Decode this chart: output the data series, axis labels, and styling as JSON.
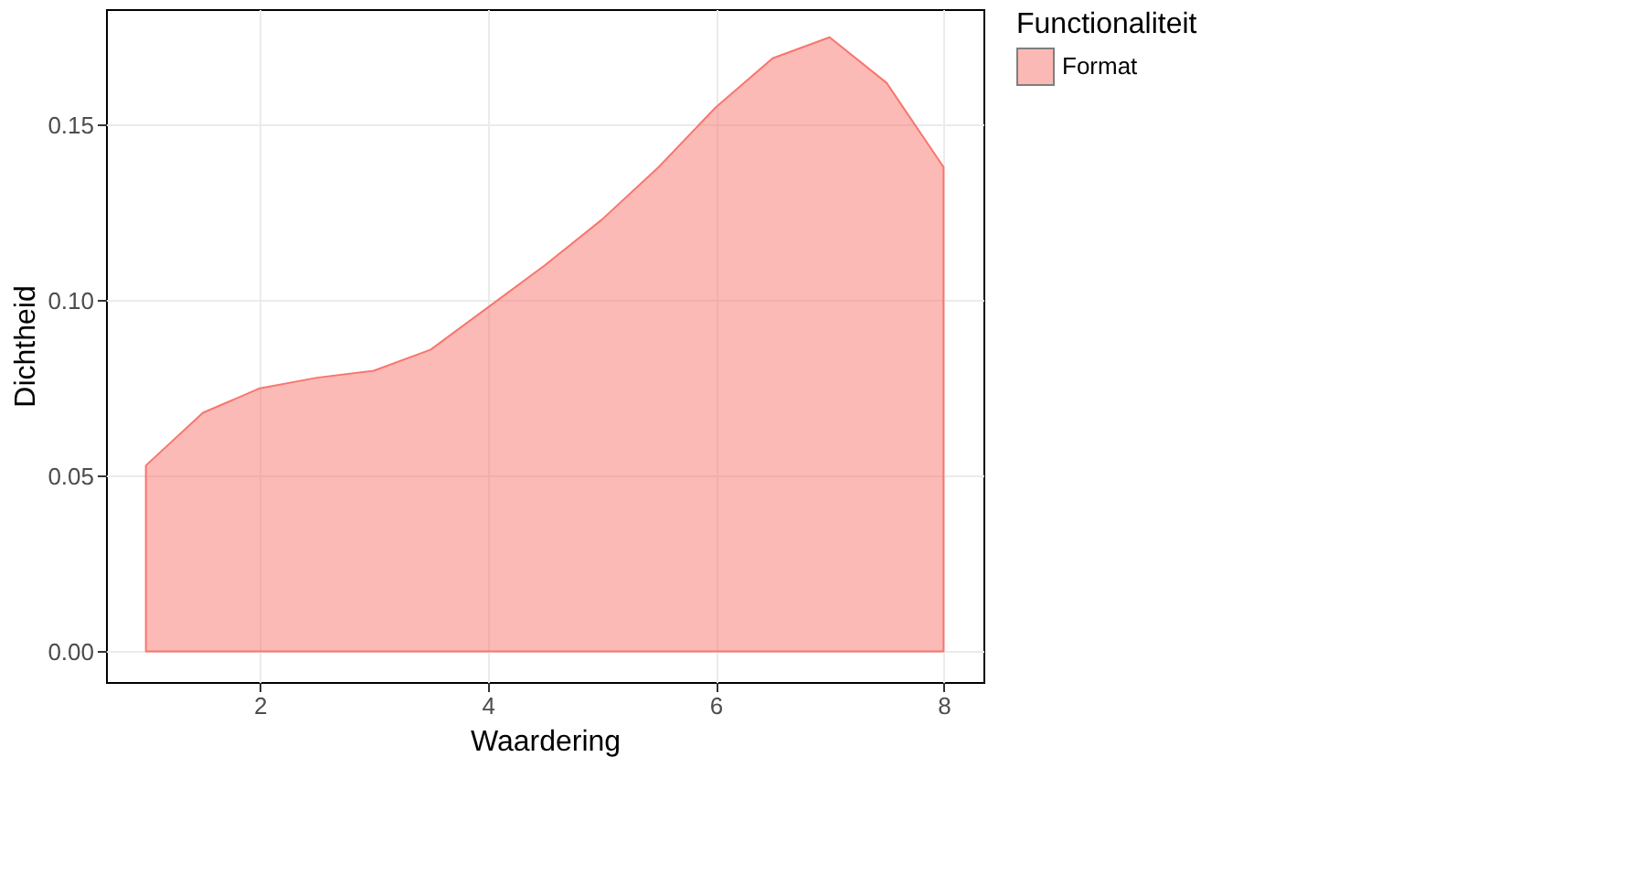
{
  "chart_data": {
    "type": "area",
    "xlabel": "Waardering",
    "ylabel": "Dichtheid",
    "legend_title": "Functionaliteit",
    "x": [
      1,
      1.5,
      2,
      2.5,
      3,
      3.5,
      4,
      4.5,
      5,
      5.5,
      6,
      6.5,
      7,
      7.5,
      8
    ],
    "series": [
      {
        "name": "Format",
        "color": "#f8766d",
        "values": [
          0.053,
          0.068,
          0.075,
          0.078,
          0.08,
          0.086,
          0.098,
          0.11,
          0.123,
          0.138,
          0.155,
          0.169,
          0.175,
          0.162,
          0.138
        ]
      }
    ],
    "xlim": [
      0.65,
      8.35
    ],
    "ylim": [
      -0.0087,
      0.183
    ],
    "xticks": [
      2,
      4,
      6,
      8
    ],
    "yticks": [
      {
        "value": 0,
        "label": "0.00"
      },
      0.05,
      {
        "value": 0.1,
        "label": "0.10"
      },
      0.15
    ],
    "grid": true,
    "legend": "right"
  }
}
